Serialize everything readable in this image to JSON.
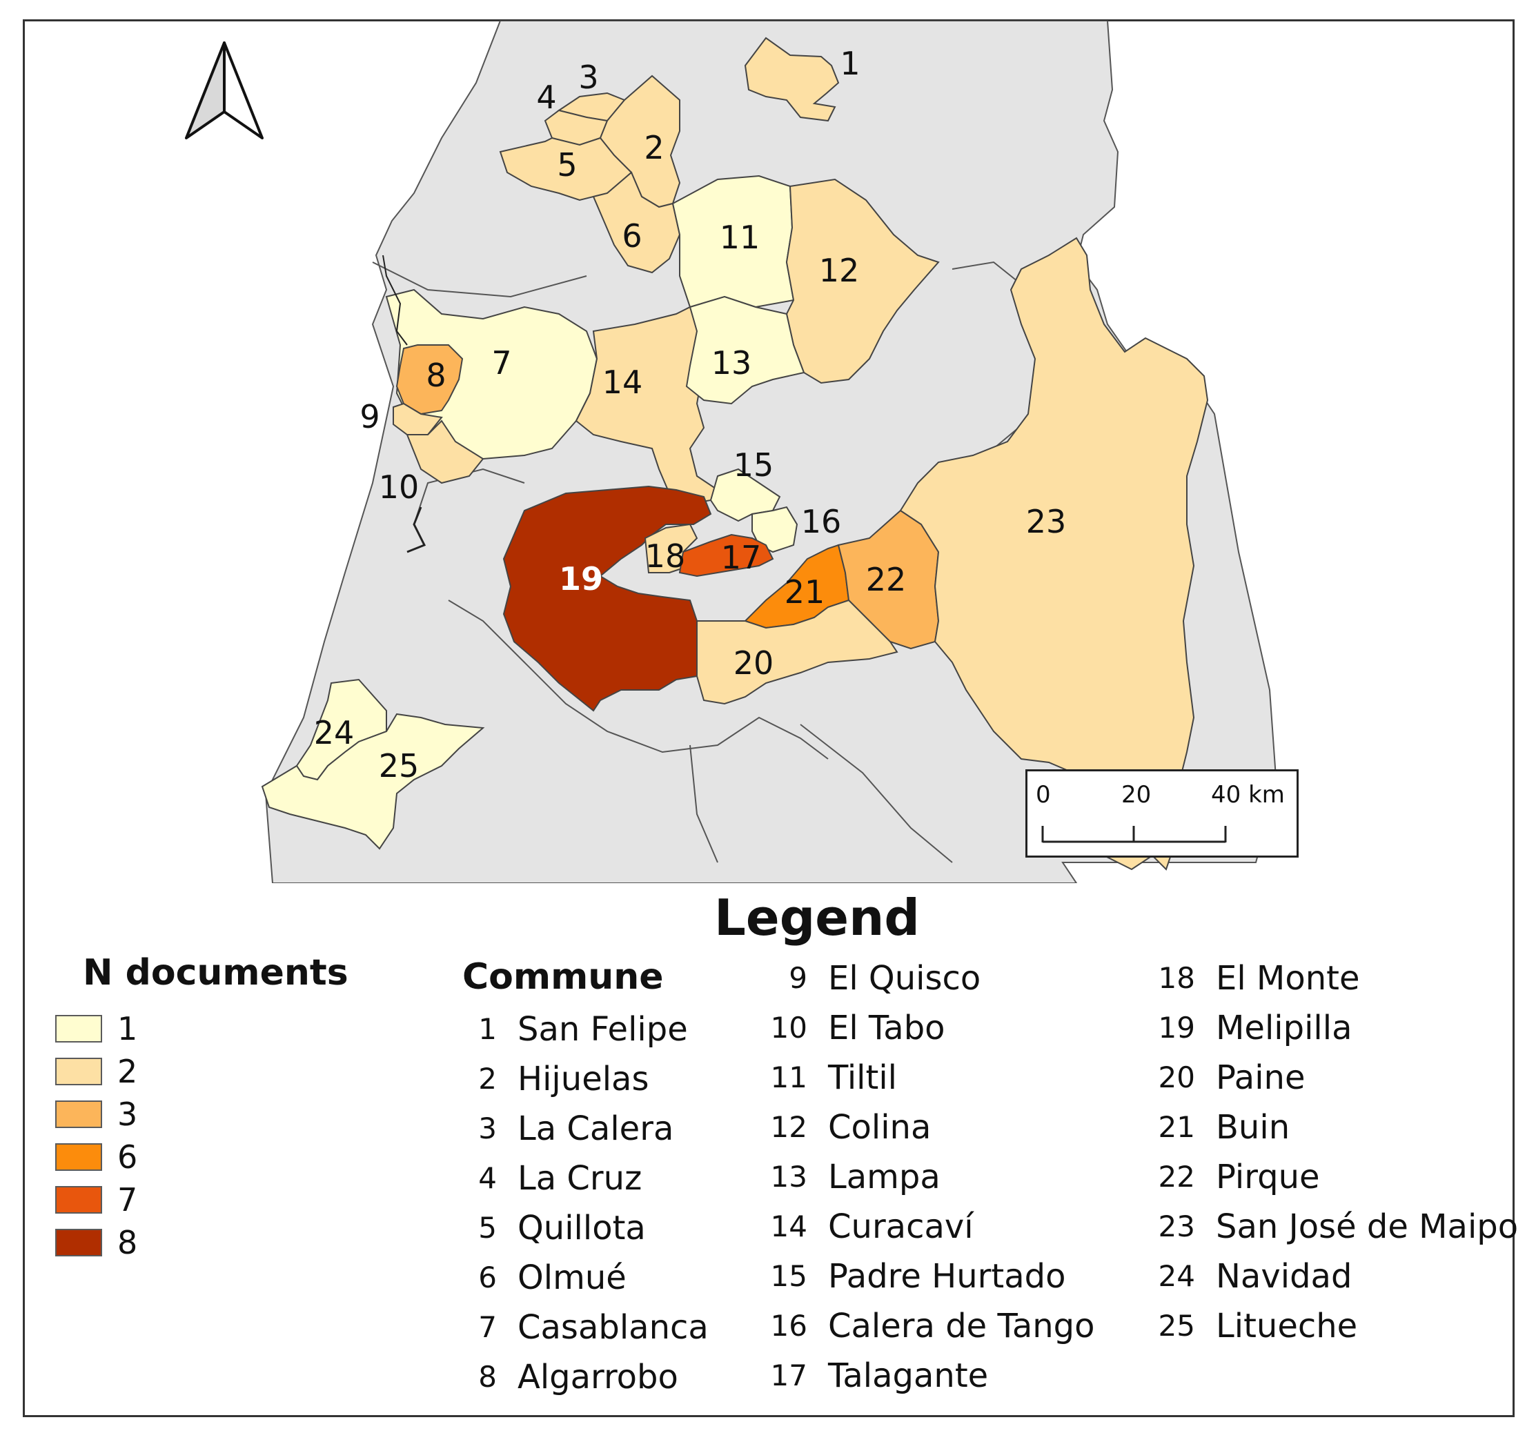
{
  "map": {
    "north_arrow_icon": "north-arrow-icon",
    "colors": {
      "background_land": "#e4e4e4",
      "class_1": "#fffdd0",
      "class_2": "#fde0a4",
      "class_3": "#fcb55a",
      "class_6": "#fc8c0c",
      "class_7": "#e8560d",
      "class_8": "#b02e00",
      "boundary": "#333333"
    },
    "communes": [
      {
        "id": "1",
        "n_documents": 2,
        "label": "1"
      },
      {
        "id": "2",
        "n_documents": 2,
        "label": "2"
      },
      {
        "id": "3",
        "n_documents": 2,
        "label": "3"
      },
      {
        "id": "4",
        "n_documents": 2,
        "label": "4"
      },
      {
        "id": "5",
        "n_documents": 2,
        "label": "5"
      },
      {
        "id": "6",
        "n_documents": 2,
        "label": "6"
      },
      {
        "id": "7",
        "n_documents": 1,
        "label": "7"
      },
      {
        "id": "8",
        "n_documents": 3,
        "label": "8"
      },
      {
        "id": "9",
        "n_documents": 2,
        "label": "9"
      },
      {
        "id": "10",
        "n_documents": 2,
        "label": "10"
      },
      {
        "id": "11",
        "n_documents": 1,
        "label": "11"
      },
      {
        "id": "12",
        "n_documents": 2,
        "label": "12"
      },
      {
        "id": "13",
        "n_documents": 1,
        "label": "13"
      },
      {
        "id": "14",
        "n_documents": 2,
        "label": "14"
      },
      {
        "id": "15",
        "n_documents": 1,
        "label": "15"
      },
      {
        "id": "16",
        "n_documents": 1,
        "label": "16"
      },
      {
        "id": "17",
        "n_documents": 7,
        "label": "17"
      },
      {
        "id": "18",
        "n_documents": 2,
        "label": "18"
      },
      {
        "id": "19",
        "n_documents": 8,
        "label": "19"
      },
      {
        "id": "20",
        "n_documents": 2,
        "label": "20"
      },
      {
        "id": "21",
        "n_documents": 6,
        "label": "21"
      },
      {
        "id": "22",
        "n_documents": 3,
        "label": "22"
      },
      {
        "id": "23",
        "n_documents": 2,
        "label": "23"
      },
      {
        "id": "24",
        "n_documents": 1,
        "label": "24"
      },
      {
        "id": "25",
        "n_documents": 1,
        "label": "25"
      }
    ],
    "scalebar": {
      "ticks": [
        "0",
        "20",
        "40 km"
      ]
    }
  },
  "legend": {
    "title": "Legend",
    "n_documents": {
      "title": "N documents",
      "classes": [
        {
          "label": "1",
          "color": "#fffdd0"
        },
        {
          "label": "2",
          "color": "#fde0a4"
        },
        {
          "label": "3",
          "color": "#fcb55a"
        },
        {
          "label": "6",
          "color": "#fc8c0c"
        },
        {
          "label": "7",
          "color": "#e8560d"
        },
        {
          "label": "8",
          "color": "#b02e00"
        }
      ]
    },
    "commune": {
      "title": "Commune",
      "items": [
        {
          "num": "1",
          "name": "San Felipe"
        },
        {
          "num": "2",
          "name": "Hijuelas"
        },
        {
          "num": "3",
          "name": "La Calera"
        },
        {
          "num": "4",
          "name": "La Cruz"
        },
        {
          "num": "5",
          "name": "Quillota"
        },
        {
          "num": "6",
          "name": "Olmué"
        },
        {
          "num": "7",
          "name": "Casablanca"
        },
        {
          "num": "8",
          "name": "Algarrobo"
        },
        {
          "num": "9",
          "name": "El Quisco"
        },
        {
          "num": "10",
          "name": "El Tabo"
        },
        {
          "num": "11",
          "name": "Tiltil"
        },
        {
          "num": "12",
          "name": "Colina"
        },
        {
          "num": "13",
          "name": "Lampa"
        },
        {
          "num": "14",
          "name": "Curacaví"
        },
        {
          "num": "15",
          "name": "Padre Hurtado"
        },
        {
          "num": "16",
          "name": "Calera de Tango"
        },
        {
          "num": "17",
          "name": "Talagante"
        },
        {
          "num": "18",
          "name": "El Monte"
        },
        {
          "num": "19",
          "name": "Melipilla"
        },
        {
          "num": "20",
          "name": "Paine"
        },
        {
          "num": "21",
          "name": "Buin"
        },
        {
          "num": "22",
          "name": "Pirque"
        },
        {
          "num": "23",
          "name": "San José de Maipo"
        },
        {
          "num": "24",
          "name": "Navidad"
        },
        {
          "num": "25",
          "name": "Litueche"
        }
      ]
    }
  }
}
